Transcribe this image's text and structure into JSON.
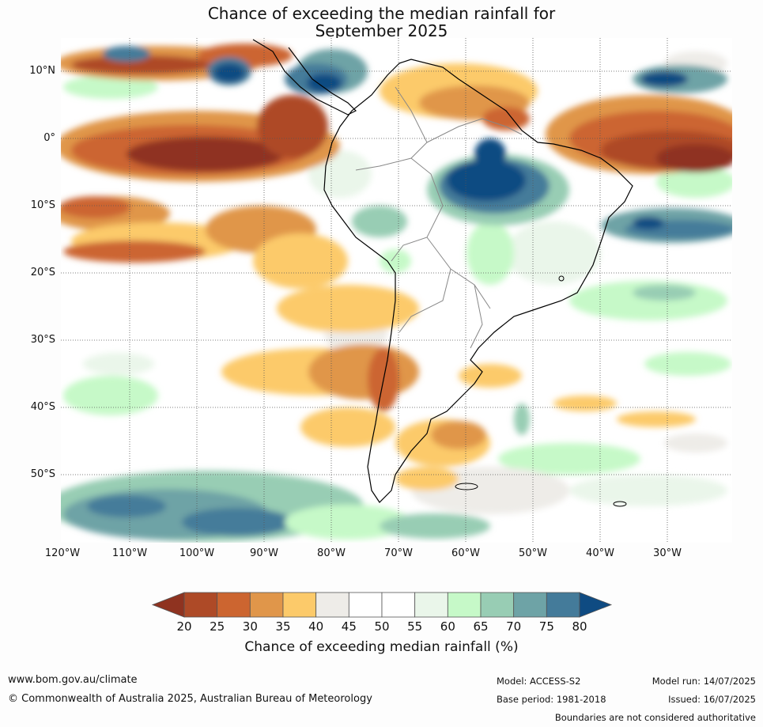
{
  "title_line1": "Chance of exceeding the median rainfall for",
  "title_line2": "September 2025",
  "lat_labels": [
    "10°N",
    "0°",
    "10°S",
    "20°S",
    "30°S",
    "40°S",
    "50°S"
  ],
  "lon_labels": [
    "120°W",
    "110°W",
    "100°W",
    "90°W",
    "80°W",
    "70°W",
    "60°W",
    "50°W",
    "40°W",
    "30°W"
  ],
  "colorbar": {
    "ticks": [
      "20",
      "25",
      "30",
      "35",
      "40",
      "45",
      "50",
      "55",
      "60",
      "65",
      "70",
      "75",
      "80"
    ],
    "colors": [
      "#8f3320",
      "#ae4a27",
      "#cc6530",
      "#e0964a",
      "#fcca6a",
      "#eeece8",
      "#ffffff",
      "#ffffff",
      "#eaf6ea",
      "#c6f9c8",
      "#98cdb4",
      "#6ea3a6",
      "#447b9a",
      "#0f4b82"
    ],
    "title": "Chance of exceeding median rainfall (%)"
  },
  "footer": {
    "website": "www.bom.gov.au/climate",
    "copyright": "© Commonwealth of Australia 2025, Australian Bureau of Meteorology",
    "model": "Model: ACCESS-S2",
    "model_run": "Model run: 14/07/2025",
    "base_period": "Base period: 1981-2018",
    "issued": "Issued: 16/07/2025",
    "disclaimer": "Boundaries are not considered authoritative"
  }
}
